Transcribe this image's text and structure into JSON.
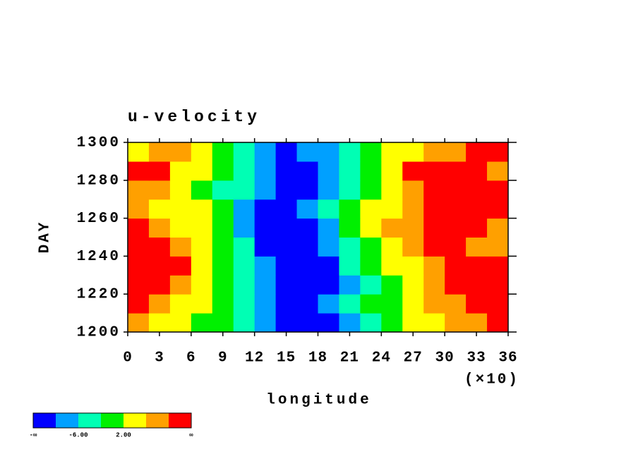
{
  "chart_data": {
    "type": "heatmap",
    "title": "u-velocity",
    "xlabel": "longitude",
    "ylabel": "DAY",
    "x_scale_note": "(×10)",
    "xlim": [
      0,
      360
    ],
    "ylim": [
      1200,
      1300
    ],
    "xticks": [
      {
        "value": 0,
        "label": "0"
      },
      {
        "value": 30,
        "label": "3"
      },
      {
        "value": 60,
        "label": "6"
      },
      {
        "value": 90,
        "label": "9"
      },
      {
        "value": 120,
        "label": "12"
      },
      {
        "value": 150,
        "label": "15"
      },
      {
        "value": 180,
        "label": "18"
      },
      {
        "value": 210,
        "label": "21"
      },
      {
        "value": 240,
        "label": "24"
      },
      {
        "value": 270,
        "label": "27"
      },
      {
        "value": 300,
        "label": "30"
      },
      {
        "value": 330,
        "label": "33"
      },
      {
        "value": 360,
        "label": "36"
      }
    ],
    "yticks": [
      1200,
      1220,
      1240,
      1260,
      1280,
      1300
    ],
    "x_bins": [
      0,
      20,
      40,
      60,
      80,
      100,
      120,
      140,
      160,
      180,
      200,
      220,
      240,
      260,
      280,
      300,
      320,
      340,
      360
    ],
    "y_bins": [
      1200,
      1210,
      1220,
      1230,
      1240,
      1250,
      1260,
      1270,
      1280,
      1290,
      1300
    ],
    "values": [
      [
        6,
        4,
        2,
        0,
        -2,
        -4,
        -8,
        -12,
        -12,
        -12,
        -10,
        -6,
        -2,
        2,
        4,
        6,
        8,
        12
      ],
      [
        12,
        8,
        4,
        2,
        -2,
        -6,
        -10,
        -12,
        -12,
        -10,
        -6,
        -2,
        0,
        2,
        6,
        8,
        12,
        12
      ],
      [
        12,
        12,
        8,
        4,
        0,
        -4,
        -8,
        -12,
        -14,
        -12,
        -8,
        -4,
        0,
        4,
        8,
        10,
        12,
        12
      ],
      [
        12,
        12,
        10,
        4,
        0,
        -4,
        -10,
        -14,
        -14,
        -12,
        -6,
        -2,
        2,
        4,
        8,
        12,
        12,
        12
      ],
      [
        10,
        12,
        6,
        2,
        -2,
        -6,
        -12,
        -12,
        -12,
        -10,
        -4,
        0,
        4,
        8,
        10,
        12,
        8,
        6
      ],
      [
        12,
        6,
        4,
        2,
        -2,
        -8,
        -12,
        -14,
        -12,
        -8,
        -2,
        2,
        6,
        8,
        10,
        12,
        12,
        8
      ],
      [
        6,
        4,
        4,
        2,
        -2,
        -8,
        -12,
        -12,
        -10,
        -6,
        -2,
        2,
        4,
        6,
        10,
        12,
        12,
        12
      ],
      [
        8,
        6,
        4,
        0,
        -4,
        -6,
        -10,
        -12,
        -12,
        -8,
        -4,
        0,
        4,
        8,
        12,
        12,
        12,
        12
      ],
      [
        12,
        10,
        4,
        2,
        -2,
        -6,
        -8,
        -12,
        -12,
        -10,
        -4,
        0,
        4,
        10,
        12,
        12,
        12,
        8
      ],
      [
        4,
        8,
        6,
        2,
        -2,
        -4,
        -8,
        -12,
        -10,
        -8,
        -4,
        -2,
        2,
        4,
        6,
        8,
        12,
        10
      ]
    ],
    "levels": [
      -10,
      -6,
      -2,
      2,
      6,
      10
    ],
    "colors": [
      "#0000ff",
      "#00a0ff",
      "#00ffb4",
      "#00f000",
      "#ffff00",
      "#ffa000",
      "#ff0000"
    ],
    "colorbar_labels": [
      "-∞",
      {
        "value": -6,
        "label": "-6.00"
      },
      {
        "value": 2,
        "label": "2.00"
      },
      "∞"
    ]
  }
}
